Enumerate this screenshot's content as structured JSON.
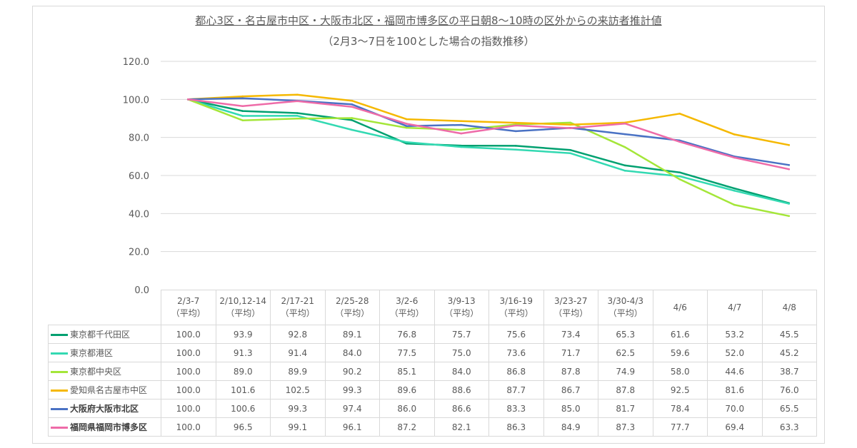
{
  "chart_data": {
    "type": "line",
    "title": "都心3区・名古屋市中区・大阪市北区・福岡市博多区の平日朝8～10時の区外からの来訪者推計値",
    "subtitle": "（2月3～7日を100とした場合の指数推移）",
    "ylim": [
      0,
      120
    ],
    "yticks": [
      "120.0",
      "100.0",
      "80.0",
      "60.0",
      "40.0",
      "20.0",
      "0.0"
    ],
    "ytick_values": [
      120,
      100,
      80,
      60,
      40,
      20,
      0
    ],
    "grid": true,
    "legend": "data-table",
    "categories": [
      {
        "line1": "2/3-7",
        "line2": "（平均）"
      },
      {
        "line1": "2/10,12-14",
        "line2": "（平均）"
      },
      {
        "line1": "2/17-21",
        "line2": "（平均）"
      },
      {
        "line1": "2/25-28",
        "line2": "（平均）"
      },
      {
        "line1": "3/2-6",
        "line2": "（平均）"
      },
      {
        "line1": "3/9-13",
        "line2": "（平均）"
      },
      {
        "line1": "3/16-19",
        "line2": "（平均）"
      },
      {
        "line1": "3/23-27",
        "line2": "（平均）"
      },
      {
        "line1": "3/30-4/3",
        "line2": "（平均）"
      },
      {
        "line1": "4/6",
        "line2": ""
      },
      {
        "line1": "4/7",
        "line2": ""
      },
      {
        "line1": "4/8",
        "line2": ""
      }
    ],
    "series": [
      {
        "name": "東京都千代田区",
        "color": "#00a070",
        "bold": false,
        "values": [
          "100.0",
          "93.9",
          "92.8",
          "89.1",
          "76.8",
          "75.7",
          "75.6",
          "73.4",
          "65.3",
          "61.6",
          "53.2",
          "45.5"
        ]
      },
      {
        "name": "東京都港区",
        "color": "#33d9b2",
        "bold": false,
        "values": [
          "100.0",
          "91.3",
          "91.4",
          "84.0",
          "77.5",
          "75.0",
          "73.6",
          "71.7",
          "62.5",
          "59.6",
          "52.0",
          "45.2"
        ]
      },
      {
        "name": "東京都中央区",
        "color": "#a4e639",
        "bold": false,
        "values": [
          "100.0",
          "89.0",
          "89.9",
          "90.2",
          "85.1",
          "84.0",
          "86.8",
          "87.8",
          "74.9",
          "58.0",
          "44.6",
          "38.7"
        ]
      },
      {
        "name": "愛知県名古屋市中区",
        "color": "#f5b800",
        "bold": false,
        "values": [
          "100.0",
          "101.6",
          "102.5",
          "99.3",
          "89.6",
          "88.6",
          "87.7",
          "86.7",
          "87.8",
          "92.5",
          "81.6",
          "76.0"
        ]
      },
      {
        "name": "大阪府大阪市北区",
        "color": "#4a72c4",
        "bold": true,
        "values": [
          "100.0",
          "100.6",
          "99.3",
          "97.4",
          "86.0",
          "86.6",
          "83.3",
          "85.0",
          "81.7",
          "78.4",
          "70.0",
          "65.5"
        ]
      },
      {
        "name": "福岡県福岡市博多区",
        "color": "#ee6ba8",
        "bold": true,
        "values": [
          "100.0",
          "96.5",
          "99.1",
          "96.1",
          "87.2",
          "82.1",
          "86.3",
          "84.9",
          "87.3",
          "77.7",
          "69.4",
          "63.3"
        ]
      }
    ]
  }
}
